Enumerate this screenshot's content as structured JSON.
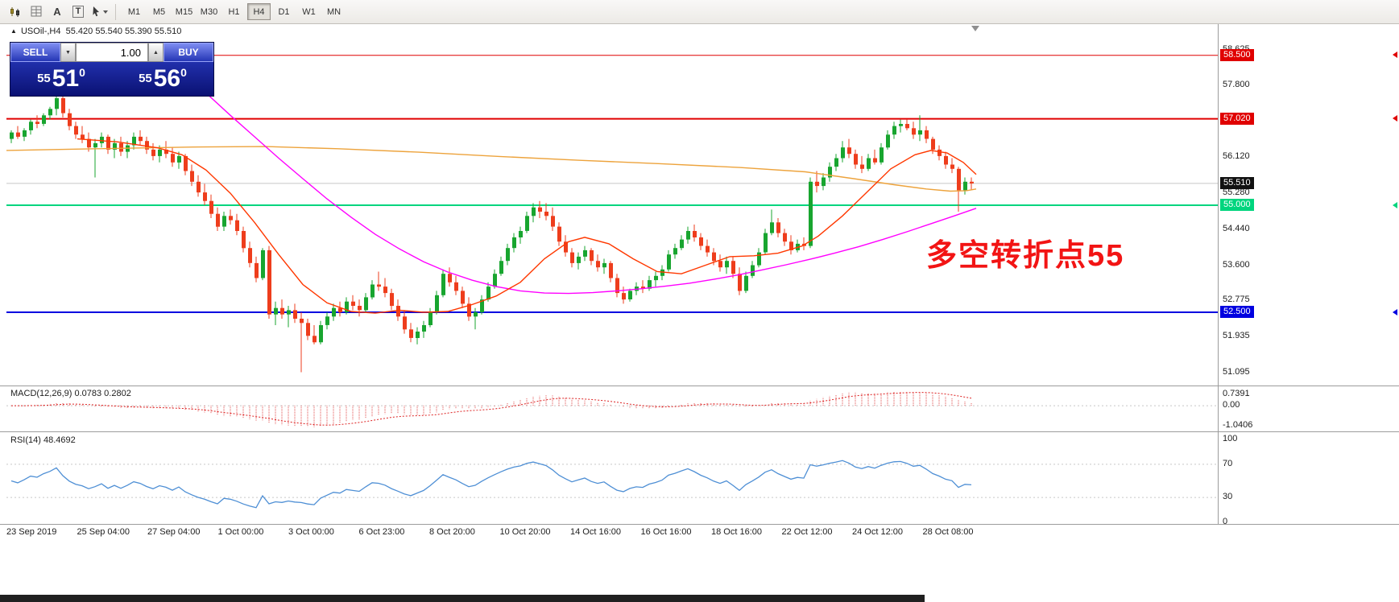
{
  "toolbar": {
    "tool_icons": [
      {
        "name": "candlestick-chart-icon"
      },
      {
        "name": "indicators-grid-icon"
      },
      {
        "name": "text-annotation-icon",
        "glyph": "A"
      },
      {
        "name": "text-label-icon",
        "glyph": "T"
      },
      {
        "name": "cursor-tool-icon"
      }
    ],
    "timeframes": [
      "M1",
      "M5",
      "M15",
      "M30",
      "H1",
      "H4",
      "D1",
      "W1",
      "MN"
    ],
    "active_timeframe": "H4"
  },
  "chart": {
    "header": {
      "marker": "▲",
      "symbol": "USOil-,H4",
      "ohlc": "55.420 55.540 55.390 55.510"
    }
  },
  "trade_panel": {
    "sell_label": "SELL",
    "buy_label": "BUY",
    "volume": "1.00",
    "spin_up_glyph": "▲",
    "spin_down_glyph": "▼",
    "sell_price_small": "55",
    "sell_price_big": "51",
    "sell_price_sup": "0",
    "buy_price_small": "55",
    "buy_price_big": "56",
    "buy_price_sup": "0"
  },
  "annotation": {
    "text": "多空转折点55",
    "color": "#f21414"
  },
  "levels": [
    {
      "price": 58.5,
      "label": "58.500",
      "color": "#e00000",
      "width": 1
    },
    {
      "price": 57.02,
      "label": "57.020",
      "color": "#e00000",
      "width": 2
    },
    {
      "price": 55.0,
      "label": "55.000",
      "color": "#00d57e",
      "width": 2
    },
    {
      "price": 52.5,
      "label": "52.500",
      "color": "#0000e0",
      "width": 2
    },
    {
      "price": 55.51,
      "label": "55.510",
      "color": "#111111",
      "width": 1,
      "current": true
    }
  ],
  "axis_ticks": [
    58.625,
    57.8,
    56.12,
    55.28,
    54.44,
    53.6,
    52.775,
    51.935,
    51.095
  ],
  "chart_data": {
    "type": "candlestick",
    "symbol": "USOil-",
    "timeframe": "H4",
    "ylim": [
      50.79,
      59.23
    ],
    "up_color": "#18a52f",
    "down_color": "#ee3d1c",
    "x_labels": [
      "23 Sep 2019",
      "25 Sep 04:00",
      "27 Sep 04:00",
      "1 Oct 00:00",
      "3 Oct 00:00",
      "6 Oct 23:00",
      "8 Oct 20:00",
      "10 Oct 20:00",
      "14 Oct 16:00",
      "16 Oct 16:00",
      "18 Oct 16:00",
      "22 Oct 12:00",
      "24 Oct 12:00",
      "28 Oct 08:00"
    ],
    "ohlc": [
      [
        56.55,
        56.75,
        56.45,
        56.7
      ],
      [
        56.7,
        56.85,
        56.55,
        56.6
      ],
      [
        56.6,
        56.8,
        56.5,
        56.75
      ],
      [
        56.75,
        57.0,
        56.65,
        56.95
      ],
      [
        56.95,
        57.1,
        56.8,
        56.9
      ],
      [
        56.9,
        57.15,
        56.85,
        57.1
      ],
      [
        57.1,
        57.3,
        57.0,
        57.25
      ],
      [
        57.25,
        57.6,
        57.1,
        57.5
      ],
      [
        57.5,
        57.55,
        57.05,
        57.15
      ],
      [
        57.15,
        57.25,
        56.75,
        56.85
      ],
      [
        56.85,
        56.95,
        56.55,
        56.65
      ],
      [
        56.65,
        56.85,
        56.45,
        56.55
      ],
      [
        56.55,
        56.7,
        56.25,
        56.35
      ],
      [
        56.35,
        56.55,
        55.65,
        56.45
      ],
      [
        56.45,
        56.7,
        56.35,
        56.6
      ],
      [
        56.6,
        56.65,
        56.2,
        56.3
      ],
      [
        56.3,
        56.55,
        56.1,
        56.45
      ],
      [
        56.45,
        56.6,
        56.15,
        56.25
      ],
      [
        56.25,
        56.5,
        56.1,
        56.4
      ],
      [
        56.4,
        56.7,
        56.3,
        56.6
      ],
      [
        56.6,
        56.75,
        56.4,
        56.5
      ],
      [
        56.5,
        56.6,
        56.2,
        56.3
      ],
      [
        56.3,
        56.45,
        56.05,
        56.15
      ],
      [
        56.15,
        56.4,
        56.0,
        56.3
      ],
      [
        56.3,
        56.5,
        56.1,
        56.2
      ],
      [
        56.2,
        56.35,
        55.9,
        56.0
      ],
      [
        56.0,
        56.25,
        55.85,
        56.15
      ],
      [
        56.15,
        56.2,
        55.7,
        55.8
      ],
      [
        55.8,
        55.95,
        55.45,
        55.55
      ],
      [
        55.55,
        55.7,
        55.2,
        55.3
      ],
      [
        55.3,
        55.5,
        55.0,
        55.1
      ],
      [
        55.1,
        55.25,
        54.7,
        54.8
      ],
      [
        54.8,
        54.95,
        54.4,
        54.5
      ],
      [
        54.5,
        54.85,
        54.4,
        54.75
      ],
      [
        54.75,
        54.9,
        54.55,
        54.65
      ],
      [
        54.65,
        54.8,
        54.3,
        54.4
      ],
      [
        54.4,
        54.5,
        53.9,
        54.0
      ],
      [
        54.0,
        54.15,
        53.55,
        53.65
      ],
      [
        53.65,
        53.8,
        53.2,
        53.3
      ],
      [
        53.3,
        54.0,
        53.25,
        53.95
      ],
      [
        53.95,
        54.05,
        52.35,
        52.45
      ],
      [
        52.45,
        52.75,
        52.2,
        52.6
      ],
      [
        52.6,
        52.8,
        52.35,
        52.45
      ],
      [
        52.45,
        52.65,
        52.15,
        52.55
      ],
      [
        52.55,
        52.7,
        52.25,
        52.35
      ],
      [
        52.35,
        52.5,
        51.1,
        52.25
      ],
      [
        52.25,
        52.35,
        51.85,
        51.95
      ],
      [
        51.95,
        52.2,
        51.75,
        51.8
      ],
      [
        51.8,
        52.3,
        51.75,
        52.2
      ],
      [
        52.2,
        52.5,
        52.1,
        52.4
      ],
      [
        52.4,
        52.7,
        52.3,
        52.6
      ],
      [
        52.6,
        52.75,
        52.4,
        52.5
      ],
      [
        52.5,
        52.85,
        52.45,
        52.75
      ],
      [
        52.75,
        52.9,
        52.55,
        52.65
      ],
      [
        52.65,
        52.8,
        52.4,
        52.55
      ],
      [
        52.55,
        52.95,
        52.5,
        52.85
      ],
      [
        52.85,
        53.25,
        52.8,
        53.15
      ],
      [
        53.15,
        53.45,
        53.0,
        53.1
      ],
      [
        53.1,
        53.3,
        52.85,
        52.95
      ],
      [
        52.95,
        53.05,
        52.55,
        52.65
      ],
      [
        52.65,
        52.8,
        52.3,
        52.4
      ],
      [
        52.4,
        52.55,
        52.0,
        52.1
      ],
      [
        52.1,
        52.25,
        51.8,
        51.9
      ],
      [
        51.9,
        52.15,
        51.75,
        52.05
      ],
      [
        52.05,
        52.3,
        51.9,
        52.2
      ],
      [
        52.2,
        52.6,
        52.15,
        52.5
      ],
      [
        52.5,
        53.0,
        52.45,
        52.9
      ],
      [
        52.9,
        53.5,
        52.85,
        53.4
      ],
      [
        53.4,
        53.55,
        53.1,
        53.2
      ],
      [
        53.2,
        53.35,
        52.9,
        53.0
      ],
      [
        53.0,
        53.1,
        52.6,
        52.7
      ],
      [
        52.7,
        52.85,
        52.3,
        52.4
      ],
      [
        52.4,
        52.6,
        52.1,
        52.5
      ],
      [
        52.5,
        52.9,
        52.45,
        52.8
      ],
      [
        52.8,
        53.2,
        52.75,
        53.1
      ],
      [
        53.1,
        53.5,
        53.05,
        53.4
      ],
      [
        53.4,
        53.8,
        53.35,
        53.7
      ],
      [
        53.7,
        54.1,
        53.6,
        54.0
      ],
      [
        54.0,
        54.35,
        53.9,
        54.25
      ],
      [
        54.25,
        54.5,
        54.1,
        54.4
      ],
      [
        54.4,
        54.85,
        54.35,
        54.75
      ],
      [
        54.75,
        55.05,
        54.6,
        54.95
      ],
      [
        54.95,
        55.1,
        54.7,
        54.85
      ],
      [
        54.85,
        55.05,
        54.65,
        54.75
      ],
      [
        54.75,
        54.95,
        54.4,
        54.5
      ],
      [
        54.5,
        54.6,
        54.05,
        54.15
      ],
      [
        54.15,
        54.3,
        53.8,
        53.9
      ],
      [
        53.9,
        54.0,
        53.55,
        53.65
      ],
      [
        53.65,
        53.9,
        53.5,
        53.8
      ],
      [
        53.8,
        54.05,
        53.7,
        53.95
      ],
      [
        53.95,
        54.0,
        53.6,
        53.7
      ],
      [
        53.7,
        53.85,
        53.45,
        53.55
      ],
      [
        53.55,
        53.75,
        53.4,
        53.65
      ],
      [
        53.65,
        53.7,
        53.2,
        53.3
      ],
      [
        53.3,
        53.4,
        52.85,
        52.95
      ],
      [
        52.95,
        53.1,
        52.7,
        52.8
      ],
      [
        52.8,
        53.05,
        52.75,
        53.0
      ],
      [
        53.0,
        53.2,
        52.9,
        53.1
      ],
      [
        53.1,
        53.25,
        52.95,
        53.05
      ],
      [
        53.05,
        53.35,
        53.0,
        53.25
      ],
      [
        53.25,
        53.45,
        53.1,
        53.35
      ],
      [
        53.35,
        53.6,
        53.25,
        53.5
      ],
      [
        53.5,
        53.95,
        53.45,
        53.85
      ],
      [
        53.85,
        54.1,
        53.75,
        54.0
      ],
      [
        54.0,
        54.3,
        53.95,
        54.2
      ],
      [
        54.2,
        54.5,
        54.1,
        54.4
      ],
      [
        54.4,
        54.55,
        54.15,
        54.25
      ],
      [
        54.25,
        54.35,
        53.95,
        54.05
      ],
      [
        54.05,
        54.2,
        53.8,
        53.9
      ],
      [
        53.9,
        54.0,
        53.6,
        53.7
      ],
      [
        53.7,
        53.85,
        53.45,
        53.55
      ],
      [
        53.55,
        53.8,
        53.4,
        53.7
      ],
      [
        53.7,
        53.8,
        53.3,
        53.4
      ],
      [
        53.4,
        53.55,
        52.9,
        53.0
      ],
      [
        53.0,
        53.45,
        52.95,
        53.35
      ],
      [
        53.35,
        53.7,
        53.3,
        53.6
      ],
      [
        53.6,
        54.0,
        53.55,
        53.9
      ],
      [
        53.9,
        54.45,
        53.85,
        54.35
      ],
      [
        54.35,
        54.9,
        54.3,
        54.6
      ],
      [
        54.6,
        54.7,
        54.25,
        54.35
      ],
      [
        54.35,
        54.45,
        54.05,
        54.15
      ],
      [
        54.15,
        54.3,
        53.85,
        53.95
      ],
      [
        53.95,
        54.2,
        53.9,
        54.1
      ],
      [
        54.1,
        54.25,
        53.95,
        54.05
      ],
      [
        54.05,
        55.65,
        54.0,
        55.55
      ],
      [
        55.55,
        55.8,
        55.3,
        55.45
      ],
      [
        55.45,
        55.75,
        55.35,
        55.65
      ],
      [
        55.65,
        56.0,
        55.55,
        55.9
      ],
      [
        55.9,
        56.2,
        55.8,
        56.1
      ],
      [
        56.1,
        56.5,
        56.0,
        56.35
      ],
      [
        56.35,
        56.55,
        56.1,
        56.2
      ],
      [
        56.2,
        56.3,
        55.85,
        55.95
      ],
      [
        55.95,
        56.15,
        55.75,
        55.85
      ],
      [
        55.85,
        56.2,
        55.8,
        56.1
      ],
      [
        56.1,
        56.3,
        55.95,
        56.0
      ],
      [
        56.0,
        56.45,
        55.95,
        56.35
      ],
      [
        56.35,
        56.75,
        56.3,
        56.65
      ],
      [
        56.65,
        56.95,
        56.55,
        56.85
      ],
      [
        56.85,
        57.0,
        56.7,
        56.9
      ],
      [
        56.9,
        57.0,
        56.75,
        56.8
      ],
      [
        56.8,
        56.95,
        56.55,
        56.65
      ],
      [
        56.65,
        57.1,
        56.5,
        56.75
      ],
      [
        56.75,
        56.85,
        56.45,
        56.55
      ],
      [
        56.55,
        56.6,
        56.2,
        56.3
      ],
      [
        56.3,
        56.4,
        56.05,
        56.15
      ],
      [
        56.15,
        56.25,
        55.85,
        55.95
      ],
      [
        55.95,
        56.1,
        55.75,
        55.85
      ],
      [
        55.85,
        55.9,
        54.85,
        55.35
      ],
      [
        55.35,
        55.65,
        55.25,
        55.55
      ],
      [
        55.55,
        55.65,
        55.35,
        55.51
      ]
    ],
    "moving_averages": [
      {
        "name": "ma-slow-orange",
        "color": "#eda33c",
        "points": [
          [
            8,
            56.28
          ],
          [
            120,
            56.32
          ],
          [
            240,
            56.36
          ],
          [
            330,
            56.37
          ],
          [
            420,
            56.32
          ],
          [
            520,
            56.24
          ],
          [
            620,
            56.14
          ],
          [
            720,
            56.05
          ],
          [
            820,
            55.97
          ],
          [
            920,
            55.88
          ],
          [
            1000,
            55.78
          ],
          [
            1060,
            55.62
          ],
          [
            1110,
            55.48
          ],
          [
            1150,
            55.38
          ],
          [
            1180,
            55.33
          ],
          [
            1200,
            55.34
          ],
          [
            1212,
            55.38
          ]
        ]
      },
      {
        "name": "ma-mid-magenta",
        "color": "#ff00ff",
        "points": [
          [
            226,
            58.15
          ],
          [
            256,
            57.62
          ],
          [
            286,
            57.1
          ],
          [
            316,
            56.6
          ],
          [
            346,
            56.1
          ],
          [
            376,
            55.62
          ],
          [
            406,
            55.15
          ],
          [
            436,
            54.72
          ],
          [
            466,
            54.32
          ],
          [
            496,
            53.98
          ],
          [
            526,
            53.68
          ],
          [
            556,
            53.44
          ],
          [
            586,
            53.25
          ],
          [
            616,
            53.1
          ],
          [
            646,
            53.0
          ],
          [
            676,
            52.95
          ],
          [
            706,
            52.94
          ],
          [
            736,
            52.96
          ],
          [
            766,
            53.0
          ],
          [
            796,
            53.05
          ],
          [
            826,
            53.11
          ],
          [
            856,
            53.18
          ],
          [
            886,
            53.27
          ],
          [
            916,
            53.37
          ],
          [
            946,
            53.49
          ],
          [
            976,
            53.61
          ],
          [
            1006,
            53.74
          ],
          [
            1036,
            53.88
          ],
          [
            1066,
            54.03
          ],
          [
            1096,
            54.2
          ],
          [
            1126,
            54.38
          ],
          [
            1156,
            54.57
          ],
          [
            1186,
            54.76
          ],
          [
            1212,
            54.93
          ]
        ]
      },
      {
        "name": "ma-fast-red",
        "color": "#ff3800",
        "points": [
          [
            96,
            56.55
          ],
          [
            146,
            56.48
          ],
          [
            196,
            56.34
          ],
          [
            226,
            56.18
          ],
          [
            256,
            55.82
          ],
          [
            286,
            55.28
          ],
          [
            316,
            54.6
          ],
          [
            346,
            53.85
          ],
          [
            376,
            53.15
          ],
          [
            406,
            52.72
          ],
          [
            436,
            52.52
          ],
          [
            466,
            52.48
          ],
          [
            496,
            52.55
          ],
          [
            526,
            52.5
          ],
          [
            556,
            52.52
          ],
          [
            586,
            52.68
          ],
          [
            616,
            52.88
          ],
          [
            646,
            53.2
          ],
          [
            676,
            53.75
          ],
          [
            706,
            54.15
          ],
          [
            726,
            54.25
          ],
          [
            756,
            54.1
          ],
          [
            786,
            53.75
          ],
          [
            816,
            53.45
          ],
          [
            846,
            53.4
          ],
          [
            876,
            53.6
          ],
          [
            906,
            53.8
          ],
          [
            936,
            53.82
          ],
          [
            966,
            53.88
          ],
          [
            996,
            54.05
          ],
          [
            1016,
            54.28
          ],
          [
            1046,
            54.75
          ],
          [
            1076,
            55.3
          ],
          [
            1106,
            55.85
          ],
          [
            1136,
            56.18
          ],
          [
            1156,
            56.28
          ],
          [
            1176,
            56.22
          ],
          [
            1196,
            56.0
          ],
          [
            1212,
            55.72
          ]
        ]
      }
    ]
  },
  "macd_panel": {
    "label": "MACD(12,26,9) 0.0783 0.2802",
    "value": "0.0783",
    "signal": "0.2802",
    "axis_max": "0.7391",
    "axis_zero": "0.00",
    "axis_min": "-1.0406",
    "range": [
      -1.0406,
      0.7391
    ]
  },
  "rsi_panel": {
    "label": "RSI(14) 48.4692",
    "value": "48.4692",
    "axis": [
      100,
      70,
      30,
      0
    ],
    "dotted_levels": [
      70,
      30
    ]
  }
}
